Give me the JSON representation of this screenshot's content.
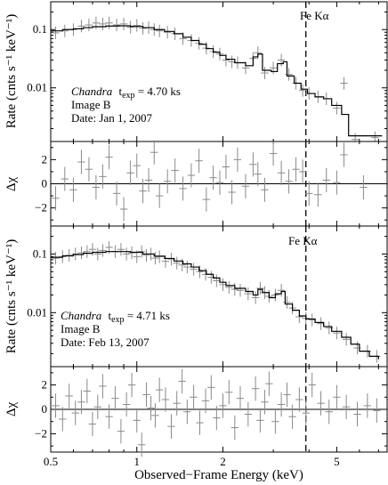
{
  "chart_data": [
    {
      "type": "scatter",
      "panel": "spectrum",
      "ylabel": "Rate (cnts s⁻¹ keV⁻¹)",
      "yscale": "log",
      "xscale": "log",
      "xlim": [
        0.5,
        7.5
      ],
      "ylim": [
        0.0012,
        0.3
      ],
      "yticks": [
        {
          "v": 0.1,
          "label": "0.1"
        },
        {
          "v": 0.01,
          "label": "0.01"
        }
      ],
      "fe_line_energy": 3.9,
      "fe_label": "Fe Kα",
      "annotation": {
        "instrument": "Chandra",
        "texp_label": "t",
        "texp_sub": "exp",
        "texp_value": " = 4.70 ks",
        "image": "Image B",
        "date": "Date: Jan 1, 2007"
      },
      "series": [
        {
          "kind": "data",
          "points": [
            [
              0.52,
              0.088
            ],
            [
              0.56,
              0.095
            ],
            [
              0.6,
              0.1
            ],
            [
              0.64,
              0.115
            ],
            [
              0.68,
              0.12
            ],
            [
              0.72,
              0.13
            ],
            [
              0.76,
              0.125
            ],
            [
              0.8,
              0.13
            ],
            [
              0.85,
              0.12
            ],
            [
              0.9,
              0.125
            ],
            [
              0.95,
              0.11
            ],
            [
              1.0,
              0.118
            ],
            [
              1.05,
              0.105
            ],
            [
              1.1,
              0.108
            ],
            [
              1.15,
              0.1
            ],
            [
              1.2,
              0.095
            ],
            [
              1.28,
              0.09
            ],
            [
              1.36,
              0.085
            ],
            [
              1.45,
              0.07
            ],
            [
              1.55,
              0.065
            ],
            [
              1.65,
              0.058
            ],
            [
              1.75,
              0.048
            ],
            [
              1.85,
              0.042
            ],
            [
              1.95,
              0.038
            ],
            [
              2.05,
              0.03
            ],
            [
              2.15,
              0.028
            ],
            [
              2.25,
              0.027
            ],
            [
              2.4,
              0.022
            ],
            [
              2.55,
              0.032
            ],
            [
              2.65,
              0.04
            ],
            [
              2.8,
              0.018
            ],
            [
              3.0,
              0.022
            ],
            [
              3.2,
              0.03
            ],
            [
              3.4,
              0.017
            ],
            [
              3.6,
              0.012
            ],
            [
              3.8,
              0.009
            ],
            [
              4.0,
              0.008
            ],
            [
              4.3,
              0.007
            ],
            [
              4.6,
              0.0065
            ],
            [
              5.0,
              0.0045
            ],
            [
              5.3,
              0.012
            ],
            [
              5.8,
              0.0013
            ],
            [
              6.8,
              0.0014
            ]
          ]
        },
        {
          "kind": "model",
          "steps": [
            [
              0.5,
              0.095
            ],
            [
              0.55,
              0.1
            ],
            [
              0.6,
              0.103
            ],
            [
              0.65,
              0.108
            ],
            [
              0.7,
              0.112
            ],
            [
              0.78,
              0.115
            ],
            [
              0.86,
              0.116
            ],
            [
              0.95,
              0.113
            ],
            [
              1.05,
              0.108
            ],
            [
              1.15,
              0.1
            ],
            [
              1.25,
              0.093
            ],
            [
              1.35,
              0.085
            ],
            [
              1.45,
              0.074
            ],
            [
              1.55,
              0.065
            ],
            [
              1.65,
              0.056
            ],
            [
              1.75,
              0.047
            ],
            [
              1.85,
              0.041
            ],
            [
              1.95,
              0.036
            ],
            [
              2.05,
              0.031
            ],
            [
              2.2,
              0.027
            ],
            [
              2.4,
              0.024
            ],
            [
              2.55,
              0.034
            ],
            [
              2.65,
              0.038
            ],
            [
              2.75,
              0.02
            ],
            [
              2.95,
              0.019
            ],
            [
              3.1,
              0.026
            ],
            [
              3.25,
              0.028
            ],
            [
              3.35,
              0.016
            ],
            [
              3.55,
              0.012
            ],
            [
              3.75,
              0.0095
            ],
            [
              3.95,
              0.008
            ],
            [
              4.2,
              0.007
            ],
            [
              4.5,
              0.0065
            ],
            [
              4.8,
              0.005
            ],
            [
              5.2,
              0.0035
            ],
            [
              5.5,
              0.0015
            ],
            [
              7.2,
              0.0015
            ]
          ]
        }
      ]
    },
    {
      "type": "scatter",
      "panel": "residuals",
      "ylabel": "Δχ",
      "xlim": [
        0.5,
        7.5
      ],
      "ylim": [
        -3.5,
        3.5
      ],
      "yticks": [
        {
          "v": 2,
          "label": "2"
        },
        {
          "v": 0,
          "label": "0"
        },
        {
          "v": -2,
          "label": "−2"
        }
      ],
      "points": [
        [
          0.52,
          -1.2
        ],
        [
          0.56,
          0.4
        ],
        [
          0.6,
          -0.5
        ],
        [
          0.64,
          1.8
        ],
        [
          0.68,
          1.2
        ],
        [
          0.72,
          -0.3
        ],
        [
          0.76,
          0.6
        ],
        [
          0.8,
          2.2
        ],
        [
          0.85,
          -0.8
        ],
        [
          0.9,
          -2.1
        ],
        [
          0.95,
          0.9
        ],
        [
          1.0,
          1.5
        ],
        [
          1.05,
          -0.6
        ],
        [
          1.1,
          0.3
        ],
        [
          1.15,
          2.6
        ],
        [
          1.2,
          -1.0
        ],
        [
          1.28,
          0.2
        ],
        [
          1.36,
          1.1
        ],
        [
          1.45,
          -0.4
        ],
        [
          1.55,
          0.7
        ],
        [
          1.65,
          1.9
        ],
        [
          1.75,
          -1.3
        ],
        [
          1.85,
          0.5
        ],
        [
          1.95,
          0.1
        ],
        [
          2.05,
          1.4
        ],
        [
          2.15,
          -0.7
        ],
        [
          2.25,
          2.0
        ],
        [
          2.4,
          -0.2
        ],
        [
          2.55,
          1.6
        ],
        [
          2.65,
          0.8
        ],
        [
          2.8,
          -0.5
        ],
        [
          3.0,
          2.5
        ],
        [
          3.2,
          0.9
        ],
        [
          3.4,
          0.2
        ],
        [
          3.6,
          1.2
        ],
        [
          3.8,
          1.0
        ],
        [
          4.0,
          -0.8
        ],
        [
          4.3,
          -0.9
        ],
        [
          4.6,
          0.3
        ],
        [
          5.0,
          0.1
        ],
        [
          5.3,
          2.4
        ],
        [
          6.2,
          -0.3
        ]
      ]
    },
    {
      "type": "scatter",
      "panel": "spectrum",
      "ylabel": "Rate (cnts s⁻¹ keV⁻¹)",
      "yscale": "log",
      "xscale": "log",
      "xlim": [
        0.5,
        7.5
      ],
      "ylim": [
        0.0012,
        0.3
      ],
      "yticks": [
        {
          "v": 0.1,
          "label": "0.1"
        },
        {
          "v": 0.01,
          "label": "0.01"
        }
      ],
      "fe_line_energy": 3.9,
      "fe_label": "Fe Kα",
      "annotation": {
        "instrument": "Chandra",
        "texp_label": "t",
        "texp_sub": "exp",
        "texp_value": " = 4.71 ks",
        "image": "Image B",
        "date": "Date: Feb 13, 2007"
      },
      "series": [
        {
          "kind": "data",
          "points": [
            [
              0.52,
              0.085
            ],
            [
              0.55,
              0.09
            ],
            [
              0.58,
              0.095
            ],
            [
              0.61,
              0.1
            ],
            [
              0.64,
              0.105
            ],
            [
              0.67,
              0.11
            ],
            [
              0.7,
              0.12
            ],
            [
              0.73,
              0.1
            ],
            [
              0.76,
              0.115
            ],
            [
              0.8,
              0.13
            ],
            [
              0.84,
              0.11
            ],
            [
              0.88,
              0.12
            ],
            [
              0.92,
              0.1
            ],
            [
              0.96,
              0.105
            ],
            [
              1.0,
              0.09
            ],
            [
              1.04,
              0.11
            ],
            [
              1.08,
              0.095
            ],
            [
              1.12,
              0.1
            ],
            [
              1.16,
              0.085
            ],
            [
              1.2,
              0.09
            ],
            [
              1.26,
              0.075
            ],
            [
              1.32,
              0.082
            ],
            [
              1.38,
              0.07
            ],
            [
              1.44,
              0.065
            ],
            [
              1.5,
              0.06
            ],
            [
              1.58,
              0.055
            ],
            [
              1.66,
              0.05
            ],
            [
              1.74,
              0.045
            ],
            [
              1.82,
              0.04
            ],
            [
              1.9,
              0.035
            ],
            [
              2.0,
              0.03
            ],
            [
              2.1,
              0.027
            ],
            [
              2.2,
              0.025
            ],
            [
              2.3,
              0.024
            ],
            [
              2.45,
              0.021
            ],
            [
              2.6,
              0.018
            ],
            [
              2.7,
              0.026
            ],
            [
              2.8,
              0.022
            ],
            [
              2.9,
              0.019
            ],
            [
              3.05,
              0.02
            ],
            [
              3.2,
              0.024
            ],
            [
              3.35,
              0.015
            ],
            [
              3.5,
              0.012
            ],
            [
              3.7,
              0.0085
            ],
            [
              3.9,
              0.008
            ],
            [
              4.1,
              0.0075
            ],
            [
              4.4,
              0.0065
            ],
            [
              4.7,
              0.0055
            ],
            [
              5.0,
              0.0045
            ],
            [
              5.4,
              0.0035
            ],
            [
              5.9,
              0.0025
            ],
            [
              6.4,
              0.0022
            ],
            [
              6.9,
              0.0018
            ]
          ]
        },
        {
          "kind": "model",
          "steps": [
            [
              0.5,
              0.088
            ],
            [
              0.55,
              0.093
            ],
            [
              0.6,
              0.098
            ],
            [
              0.65,
              0.103
            ],
            [
              0.7,
              0.107
            ],
            [
              0.78,
              0.11
            ],
            [
              0.86,
              0.11
            ],
            [
              0.95,
              0.107
            ],
            [
              1.05,
              0.1
            ],
            [
              1.15,
              0.092
            ],
            [
              1.25,
              0.084
            ],
            [
              1.35,
              0.076
            ],
            [
              1.45,
              0.068
            ],
            [
              1.55,
              0.06
            ],
            [
              1.65,
              0.052
            ],
            [
              1.75,
              0.045
            ],
            [
              1.85,
              0.039
            ],
            [
              1.95,
              0.033
            ],
            [
              2.05,
              0.029
            ],
            [
              2.2,
              0.026
            ],
            [
              2.4,
              0.023
            ],
            [
              2.55,
              0.02
            ],
            [
              2.65,
              0.025
            ],
            [
              2.75,
              0.022
            ],
            [
              2.9,
              0.018
            ],
            [
              3.05,
              0.021
            ],
            [
              3.2,
              0.023
            ],
            [
              3.3,
              0.014
            ],
            [
              3.5,
              0.011
            ],
            [
              3.7,
              0.0088
            ],
            [
              3.9,
              0.0078
            ],
            [
              4.2,
              0.0068
            ],
            [
              4.5,
              0.0058
            ],
            [
              4.8,
              0.0048
            ],
            [
              5.2,
              0.0038
            ],
            [
              5.6,
              0.0029
            ],
            [
              6.0,
              0.0022
            ],
            [
              6.5,
              0.0018
            ],
            [
              7.0,
              0.0016
            ]
          ]
        }
      ]
    },
    {
      "type": "scatter",
      "panel": "residuals",
      "ylabel": "Δχ",
      "xlabel": "Observed−Frame Energy (keV)",
      "xlim": [
        0.5,
        7.5
      ],
      "ylim": [
        -3.5,
        3.5
      ],
      "yticks": [
        {
          "v": 2,
          "label": "2"
        },
        {
          "v": 0,
          "label": "0"
        },
        {
          "v": -2,
          "label": "−2"
        }
      ],
      "xticks": [
        {
          "v": 0.5,
          "label": "0.5"
        },
        {
          "v": 1,
          "label": "1"
        },
        {
          "v": 2,
          "label": "2"
        },
        {
          "v": 5,
          "label": "5"
        }
      ],
      "points": [
        [
          0.52,
          0.3
        ],
        [
          0.55,
          -0.8
        ],
        [
          0.58,
          1.1
        ],
        [
          0.61,
          -0.3
        ],
        [
          0.64,
          0.6
        ],
        [
          0.67,
          1.5
        ],
        [
          0.7,
          -1.2
        ],
        [
          0.73,
          0.2
        ],
        [
          0.76,
          1.9
        ],
        [
          0.8,
          -0.6
        ],
        [
          0.84,
          0.9
        ],
        [
          0.88,
          -1.8
        ],
        [
          0.92,
          0.4
        ],
        [
          0.96,
          2.0
        ],
        [
          1.0,
          -0.9
        ],
        [
          1.04,
          -2.9
        ],
        [
          1.08,
          1.2
        ],
        [
          1.12,
          0.1
        ],
        [
          1.16,
          -0.5
        ],
        [
          1.2,
          1.6
        ],
        [
          1.26,
          0.8
        ],
        [
          1.32,
          -1.4
        ],
        [
          1.38,
          0.5
        ],
        [
          1.44,
          2.3
        ],
        [
          1.5,
          -0.2
        ],
        [
          1.58,
          1.0
        ],
        [
          1.66,
          -1.1
        ],
        [
          1.74,
          0.7
        ],
        [
          1.82,
          1.8
        ],
        [
          1.9,
          -0.7
        ],
        [
          2.0,
          0.3
        ],
        [
          2.1,
          1.4
        ],
        [
          2.2,
          -1.5
        ],
        [
          2.3,
          0.9
        ],
        [
          2.45,
          -0.4
        ],
        [
          2.6,
          1.7
        ],
        [
          2.7,
          -0.9
        ],
        [
          2.8,
          0.6
        ],
        [
          2.9,
          2.1
        ],
        [
          3.05,
          -1.0
        ],
        [
          3.2,
          0.4
        ],
        [
          3.35,
          1.2
        ],
        [
          3.5,
          -0.6
        ],
        [
          3.7,
          0.8
        ],
        [
          3.9,
          -0.3
        ],
        [
          4.1,
          2.0
        ],
        [
          4.4,
          0.5
        ],
        [
          4.7,
          -0.2
        ],
        [
          5.0,
          1.0
        ],
        [
          5.4,
          0.2
        ],
        [
          5.9,
          -0.4
        ],
        [
          6.4,
          0.3
        ],
        [
          6.9,
          -0.1
        ]
      ]
    }
  ]
}
